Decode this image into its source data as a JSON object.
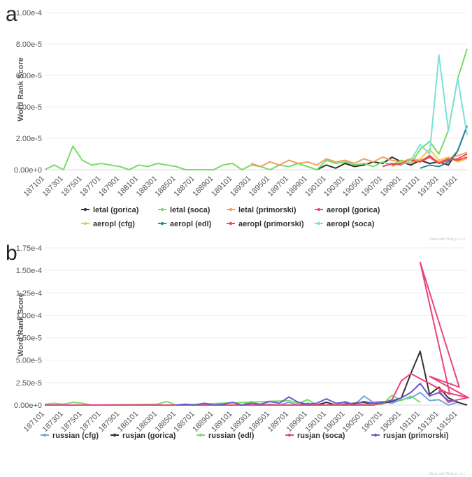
{
  "charts": [
    {
      "panel": "a",
      "ylabel": "Word Rank Score",
      "credit": "Made with Plotly.js v1.x",
      "legend": "bottom",
      "chart_data": {
        "type": "line",
        "xlabel": "",
        "ylabel": "Word Rank Score",
        "ylim": [
          0,
          0.0001
        ],
        "yticks": [
          "0.00e+0",
          "2.00e-5",
          "4.00e-5",
          "6.00e-5",
          "8.00e-5",
          "1.00e-4"
        ],
        "x_ticks": [
          "187101",
          "187301",
          "187501",
          "187701",
          "187901",
          "188101",
          "188301",
          "188501",
          "188701",
          "188901",
          "189101",
          "189301",
          "189501",
          "189701",
          "189901",
          "190101",
          "190301",
          "190501",
          "190701",
          "190901",
          "191101",
          "191301",
          "191501"
        ],
        "x_start": 187101,
        "x_end": 191601,
        "grid": true,
        "series": [
          {
            "name": "letal (gorica)",
            "color": "#333333",
            "x": [
              190001,
              190101,
              190201,
              190301,
              190401,
              190501,
              190601,
              190701,
              190801,
              190901,
              191001,
              191101,
              191201,
              191301,
              191401,
              191501,
              191601
            ],
            "y": [
              0,
              3e-06,
              1e-06,
              4e-06,
              2e-06,
              3e-06,
              5e-06,
              4e-06,
              8e-06,
              5e-06,
              3e-06,
              6e-06,
              4e-06,
              5e-06,
              3e-06,
              1.2e-05,
              2.8e-05
            ]
          },
          {
            "name": "letal (soca)",
            "color": "#77dd66",
            "x": [
              187101,
              187201,
              187301,
              187401,
              187501,
              187601,
              187701,
              187801,
              187901,
              188001,
              188101,
              188201,
              188301,
              188401,
              188501,
              188601,
              188701,
              188801,
              188901,
              189001,
              189101,
              189201,
              189301,
              189401,
              189501,
              189601,
              189701,
              189801,
              189901,
              190001,
              190101,
              190201,
              190301,
              190401,
              190501,
              190601,
              190701,
              190801,
              190901,
              191001,
              191101,
              191201,
              191301,
              191401,
              191501,
              191601
            ],
            "y": [
              0,
              3e-06,
              0,
              1.5e-05,
              6e-06,
              3e-06,
              4e-06,
              3e-06,
              2e-06,
              0,
              3e-06,
              2e-06,
              4e-06,
              3e-06,
              2e-06,
              0,
              0,
              0,
              0,
              3e-06,
              4e-06,
              0,
              3e-06,
              2e-06,
              0,
              3e-06,
              2e-06,
              4e-06,
              2e-06,
              0,
              6e-06,
              4e-06,
              5e-06,
              3e-06,
              4e-06,
              2e-06,
              5e-06,
              3e-06,
              6e-06,
              4e-06,
              1.3e-05,
              1.8e-05,
              1e-05,
              2.5e-05,
              5.8e-05,
              7.7e-05
            ]
          },
          {
            "name": "letal (primorski)",
            "color": "#f0a060",
            "x": [
              189301,
              189401,
              189501,
              189601,
              189701,
              189801,
              189901,
              190001,
              190101,
              190201,
              190301,
              190401,
              190501,
              190601,
              190701,
              190801,
              190901,
              191001,
              191101,
              191201,
              191301,
              191401,
              191501,
              191601
            ],
            "y": [
              4e-06,
              2e-06,
              5e-06,
              3e-06,
              6e-06,
              4e-06,
              5e-06,
              3e-06,
              7e-06,
              5e-06,
              6e-06,
              4e-06,
              7e-06,
              5e-06,
              8e-06,
              6e-06,
              5e-06,
              7e-06,
              6e-06,
              8e-06,
              5e-06,
              7e-06,
              9e-06,
              1.1e-05
            ]
          },
          {
            "name": "aeropl (gorica)",
            "color": "#e8457a",
            "x": [
              190701,
              190801,
              190901,
              191001,
              191101,
              191201,
              191301,
              191401,
              191501,
              191601
            ],
            "y": [
              2e-06,
              4e-06,
              3e-06,
              6e-06,
              5e-06,
              8e-06,
              4e-06,
              6e-06,
              7e-06,
              1e-05
            ]
          },
          {
            "name": "aeropl (cfg)",
            "color": "#f2c84b",
            "x": [
              190801,
              190901,
              191001,
              191101,
              191201,
              191301,
              191401,
              191501,
              191601
            ],
            "y": [
              2e-06,
              5e-06,
              4e-06,
              7e-06,
              1.3e-05,
              6e-06,
              8e-06,
              5e-06,
              7e-06
            ]
          },
          {
            "name": "aeropl (edl)",
            "color": "#2a8a9a",
            "x": [
              191101,
              191201,
              191301,
              191401,
              191501,
              191601
            ],
            "y": [
              1e-06,
              3e-06,
              2e-06,
              5e-06,
              1.2e-05,
              2.8e-05
            ]
          },
          {
            "name": "aeropl (primorski)",
            "color": "#f04a3a",
            "x": [
              190801,
              190901,
              191001,
              191101,
              191201,
              191301,
              191401,
              191501,
              191601
            ],
            "y": [
              3e-06,
              4e-06,
              6e-06,
              5e-06,
              9e-06,
              4e-06,
              7e-06,
              6e-06,
              8e-06
            ]
          },
          {
            "name": "aeropl (soca)",
            "color": "#7de0d8",
            "x": [
              190901,
              191001,
              191101,
              191201,
              191301,
              191401,
              191501,
              191601
            ],
            "y": [
              3e-06,
              6e-06,
              1.6e-05,
              1e-05,
              7.3e-05,
              2.5e-05,
              5.8e-05,
              2.2e-05
            ]
          }
        ]
      }
    },
    {
      "panel": "b",
      "ylabel": "Word Rank Score",
      "credit": "Made with Plotly.js v1.x",
      "legend": "bottom",
      "chart_data": {
        "type": "line",
        "xlabel": "",
        "ylabel": "Word Rank Score",
        "ylim": [
          0,
          0.000175
        ],
        "yticks": [
          "0.00e+0",
          "2.50e-5",
          "5.00e-5",
          "7.50e-5",
          "1.00e-4",
          "1.25e-4",
          "1.50e-4",
          "1.75e-4"
        ],
        "x_ticks": [
          "187101",
          "187301",
          "187501",
          "187701",
          "187901",
          "188101",
          "188301",
          "188501",
          "188701",
          "188901",
          "189101",
          "189301",
          "189501",
          "189701",
          "189901",
          "190101",
          "190301",
          "190501",
          "190701",
          "190901",
          "191101",
          "191301",
          "191501"
        ],
        "x_start": 187101,
        "x_end": 191601,
        "grid": true,
        "series": [
          {
            "name": "russian (cfg)",
            "color": "#6fa8e0",
            "x": [
              189201,
              189301,
              189401,
              189501,
              189601,
              189701,
              189801,
              189901,
              190001,
              190101,
              190201,
              190301,
              190401,
              190501,
              190601,
              190701,
              190801,
              190901,
              191001,
              191101,
              191201,
              191301,
              191401,
              191501
            ],
            "y": [
              0,
              4e-06,
              0,
              1e-06,
              0,
              3e-06,
              0,
              2e-06,
              0,
              3e-06,
              0,
              4e-06,
              0,
              1e-05,
              3e-06,
              4e-06,
              2e-06,
              6e-06,
              8e-06,
              1.4e-05,
              5e-06,
              6e-06,
              0,
              3e-06
            ]
          },
          {
            "name": "rusjan (gorica)",
            "color": "#333333",
            "x": [
              189801,
              189901,
              190001,
              190101,
              190201,
              190301,
              190401,
              190501,
              190601,
              190701,
              190801,
              190901,
              191001,
              191101,
              191201,
              191301,
              191401,
              191501,
              191601
            ],
            "y": [
              0,
              1e-06,
              0,
              3e-06,
              0,
              1e-06,
              2e-06,
              3e-06,
              1e-06,
              2e-06,
              4e-06,
              8e-06,
              3.5e-05,
              6e-05,
              1.2e-05,
              2e-05,
              8e-06,
              3e-06,
              0
            ]
          },
          {
            "name": "russian (edl)",
            "color": "#77dd66",
            "x": [
              187101,
              187201,
              187301,
              187401,
              187501,
              187601,
              188301,
              188401,
              188501,
              189701,
              189801,
              189901,
              190001,
              190701,
              190801,
              190901,
              191001,
              191101
            ],
            "y": [
              1e-06,
              2e-06,
              1e-06,
              3e-06,
              2e-06,
              0,
              1e-06,
              4e-06,
              0,
              5e-06,
              2e-06,
              6e-06,
              0,
              1e-06,
              1.1e-05,
              5e-06,
              1e-05,
              3e-06
            ]
          },
          {
            "name": "rusjan (soca)",
            "color": "#e8457a",
            "x": [
              187101,
              187601,
              188101,
              188601,
              189101,
              189601,
              190101,
              190601,
              190701,
              190801,
              190901,
              191001,
              191051,
              191101,
              191151,
              191201,
              191251,
              191301,
              191401,
              191501,
              191601
            ],
            "y": [
              0,
              0,
              0,
              0,
              0,
              0,
              0,
              0,
              2e-06,
              6e-06,
              2.7e-05,
              3.5e-05,
              1.2e-05,
              0.000159,
              2e-05,
              3.2e-05,
              8e-06,
              1.6e-05,
              3e-06,
              6e-06,
              8e-06
            ]
          },
          {
            "name": "rusjan (primorski)",
            "color": "#6a5acd",
            "x": [
              188501,
              188601,
              188701,
              188801,
              188901,
              189001,
              189101,
              189201,
              189301,
              189401,
              189501,
              189601,
              189701,
              189801,
              189901,
              190001,
              190101,
              190201,
              190301,
              190401,
              190501,
              190601,
              190701,
              190801,
              190901,
              191001,
              191101,
              191201,
              191301,
              191401,
              191501
            ],
            "y": [
              0,
              1e-06,
              0,
              2e-06,
              0,
              1e-06,
              3e-06,
              0,
              2e-06,
              1e-06,
              4e-06,
              2e-06,
              9e-06,
              3e-06,
              1e-06,
              2e-06,
              7e-06,
              2e-06,
              3e-06,
              1e-06,
              4e-06,
              2e-06,
              3e-06,
              5e-06,
              8e-06,
              1.4e-05,
              2.4e-05,
              1e-05,
              1.4e-05,
              5e-06,
              4e-06
            ]
          }
        ]
      }
    }
  ]
}
